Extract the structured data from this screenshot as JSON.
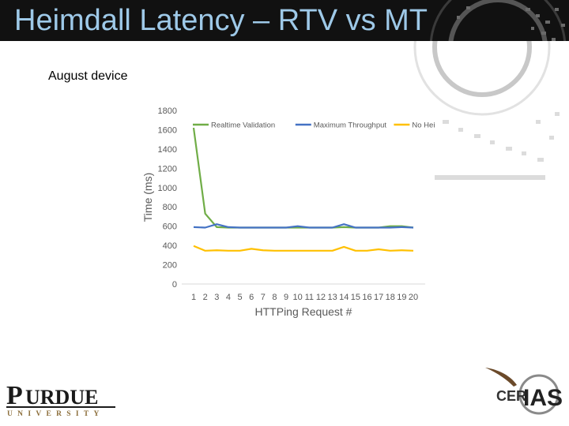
{
  "slide": {
    "title": "Heimdall Latency – RTV vs MT",
    "subtitle": "August device"
  },
  "logos": {
    "left": "PURDUE UNIVERSITY",
    "right": "CERIAS"
  },
  "chart_data": {
    "type": "line",
    "title": "",
    "xlabel": "HTTPing Request #",
    "ylabel": "Time (ms)",
    "x": [
      1,
      2,
      3,
      4,
      5,
      6,
      7,
      8,
      9,
      10,
      11,
      12,
      13,
      14,
      15,
      16,
      17,
      18,
      19,
      20
    ],
    "ylim": [
      0,
      1800
    ],
    "yticks": [
      0,
      200,
      400,
      600,
      800,
      1000,
      1200,
      1400,
      1600,
      1800
    ],
    "grid": false,
    "legend": "top",
    "series": [
      {
        "name": "Realtime Validation",
        "color": "#70ad47",
        "values": [
          1620,
          730,
          590,
          585,
          585,
          585,
          585,
          585,
          585,
          585,
          585,
          585,
          585,
          590,
          585,
          585,
          585,
          600,
          600,
          585
        ]
      },
      {
        "name": "Maximum Throughput",
        "color": "#4472c4",
        "values": [
          590,
          585,
          620,
          590,
          585,
          585,
          585,
          585,
          585,
          600,
          585,
          585,
          585,
          620,
          585,
          585,
          585,
          585,
          590,
          585
        ]
      },
      {
        "name": "No Heimdall",
        "color": "#ffc000",
        "values": [
          395,
          345,
          350,
          345,
          345,
          365,
          350,
          345,
          345,
          345,
          345,
          345,
          345,
          385,
          345,
          345,
          360,
          345,
          350,
          345
        ]
      }
    ]
  }
}
